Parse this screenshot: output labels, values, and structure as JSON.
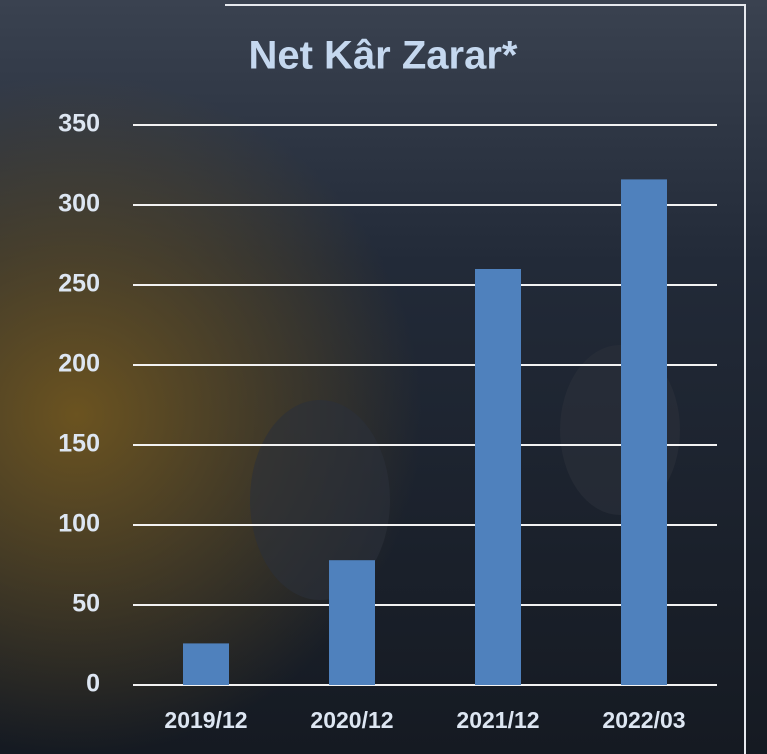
{
  "chart_data": {
    "type": "bar",
    "title": "Net Kâr Zarar*",
    "categories": [
      "2019/12",
      "2020/12",
      "2021/12",
      "2022/03"
    ],
    "values": [
      26,
      78,
      260,
      316
    ],
    "color": "#4f81bd",
    "ylim": [
      0,
      350
    ],
    "yticks": [
      0,
      50,
      100,
      150,
      200,
      250,
      300,
      350
    ],
    "grid": true
  }
}
